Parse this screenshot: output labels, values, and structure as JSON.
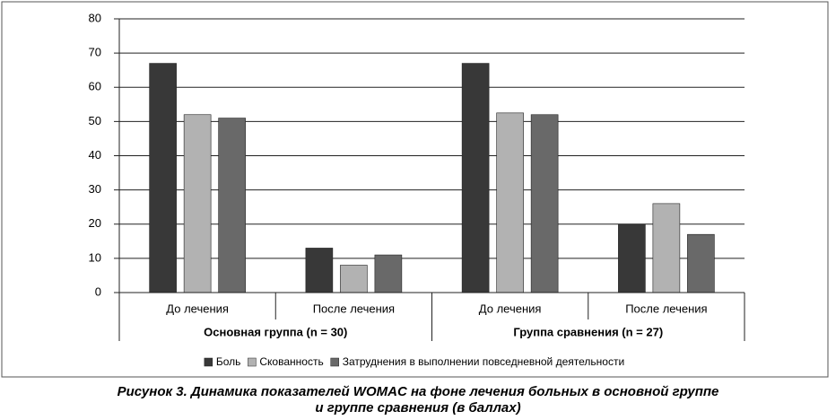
{
  "chart_data": {
    "type": "bar",
    "categories": [
      "До лечения",
      "После лечения",
      "До лечения",
      "После лечения"
    ],
    "groups": [
      "Основная группа (n = 30)",
      "Группа сравнения (n = 27)"
    ],
    "series": [
      {
        "name": "Боль",
        "color": "#383838",
        "values": [
          67,
          13,
          67,
          20
        ]
      },
      {
        "name": "Скованность",
        "color": "#b2b2b2",
        "values": [
          52,
          8,
          52.5,
          26
        ]
      },
      {
        "name": "Затруднения в выполнении повседневной деятельности",
        "color": "#696969",
        "values": [
          51,
          11,
          52,
          17
        ]
      }
    ],
    "ylim": [
      0,
      80
    ],
    "yticks": [
      0,
      10,
      20,
      30,
      40,
      50,
      60,
      70,
      80
    ],
    "grid": true,
    "legend": "bottom",
    "caption": [
      "Рисунок 3. Динамика показателей WOMAC на фоне лечения больных в основной группе",
      "и группе сравнения (в баллах)"
    ]
  }
}
